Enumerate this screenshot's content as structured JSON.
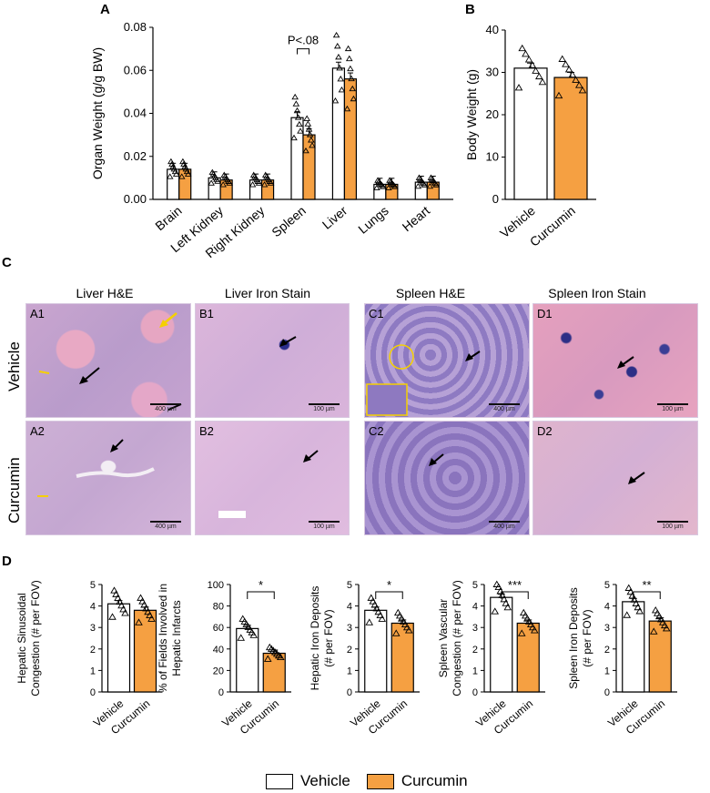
{
  "panels": {
    "A": "A",
    "B": "B",
    "C": "C",
    "D": "D"
  },
  "colors": {
    "vehicle": "#ffffff",
    "curcumin": "#f5a042",
    "outline": "#000000"
  },
  "legend": {
    "vehicle": "Vehicle",
    "curcumin": "Curcumin"
  },
  "panel_c": {
    "columns": [
      "Liver H&E",
      "Liver Iron Stain",
      "Spleen H&E",
      "Spleen Iron Stain"
    ],
    "rows": [
      "Vehicle",
      "Curcumin"
    ],
    "tiles": [
      {
        "label": "A1",
        "scale": "400 µm"
      },
      {
        "label": "B1",
        "scale": "100 µm"
      },
      {
        "label": "C1",
        "scale": "400 µm"
      },
      {
        "label": "D1",
        "scale": "100 µm"
      },
      {
        "label": "A2",
        "scale": "400 µm"
      },
      {
        "label": "B2",
        "scale": "100 µm"
      },
      {
        "label": "C2",
        "scale": "400 µm"
      },
      {
        "label": "D2",
        "scale": "100 µm"
      }
    ]
  },
  "chart_data": [
    {
      "id": "A",
      "type": "bar",
      "ylabel": "Organ Weight (g/g BW)",
      "ylim": [
        0,
        0.08
      ],
      "yticks": [
        "0.00",
        "0.02",
        "0.04",
        "0.06",
        "0.08"
      ],
      "categories": [
        "Brain",
        "Left Kidney",
        "Right Kidney",
        "Spleen",
        "Liver",
        "Lungs",
        "Heart"
      ],
      "series": [
        {
          "name": "Vehicle",
          "values": [
            0.014,
            0.01,
            0.009,
            0.038,
            0.061,
            0.007,
            0.008
          ]
        },
        {
          "name": "Curcumin",
          "values": [
            0.014,
            0.009,
            0.009,
            0.03,
            0.056,
            0.007,
            0.008
          ]
        }
      ],
      "annotations": [
        {
          "category": "Spleen",
          "text": "P<.08"
        }
      ]
    },
    {
      "id": "B",
      "type": "bar",
      "ylabel": "Body Weight (g)",
      "ylim": [
        0,
        40
      ],
      "yticks": [
        "0",
        "10",
        "20",
        "30",
        "40"
      ],
      "categories": [
        "Vehicle",
        "Curcumin"
      ],
      "values": [
        31,
        28.8
      ]
    },
    {
      "id": "D1",
      "type": "bar",
      "ylabel": [
        "Hepatic Sinusoidal",
        "Congestion (# per FOV)"
      ],
      "ylim": [
        0,
        5
      ],
      "yticks": [
        "0",
        "1",
        "2",
        "3",
        "4",
        "5"
      ],
      "categories": [
        "Vehicle",
        "Curcumin"
      ],
      "values": [
        4.1,
        3.8
      ],
      "significance": ""
    },
    {
      "id": "D2",
      "type": "bar",
      "ylabel": [
        "% of Fields Involved in",
        "Hepatic Infarcts"
      ],
      "ylim": [
        0,
        100
      ],
      "yticks": [
        "0",
        "20",
        "40",
        "60",
        "80",
        "100"
      ],
      "categories": [
        "Vehicle",
        "Curcumin"
      ],
      "values": [
        59,
        36
      ],
      "significance": "*"
    },
    {
      "id": "D3",
      "type": "bar",
      "ylabel": [
        "Hepatic Iron Deposits",
        "(# per FOV)"
      ],
      "ylim": [
        0,
        5
      ],
      "yticks": [
        "0",
        "1",
        "2",
        "3",
        "4",
        "5"
      ],
      "categories": [
        "Vehicle",
        "Curcumin"
      ],
      "values": [
        3.8,
        3.2
      ],
      "significance": "*"
    },
    {
      "id": "D4",
      "type": "bar",
      "ylabel": [
        "Spleen Vascular",
        "Congestion (# per FOV)"
      ],
      "ylim": [
        0,
        5
      ],
      "yticks": [
        "0",
        "1",
        "2",
        "3",
        "4",
        "5"
      ],
      "categories": [
        "Vehicle",
        "Curcumin"
      ],
      "values": [
        4.4,
        3.2
      ],
      "significance": "***"
    },
    {
      "id": "D5",
      "type": "bar",
      "ylabel": [
        "Spleen Iron Deposits",
        "(# per FOV)"
      ],
      "ylim": [
        0,
        5
      ],
      "yticks": [
        "0",
        "1",
        "2",
        "3",
        "4",
        "5"
      ],
      "categories": [
        "Vehicle",
        "Curcumin"
      ],
      "values": [
        4.2,
        3.3
      ],
      "significance": "**"
    }
  ]
}
